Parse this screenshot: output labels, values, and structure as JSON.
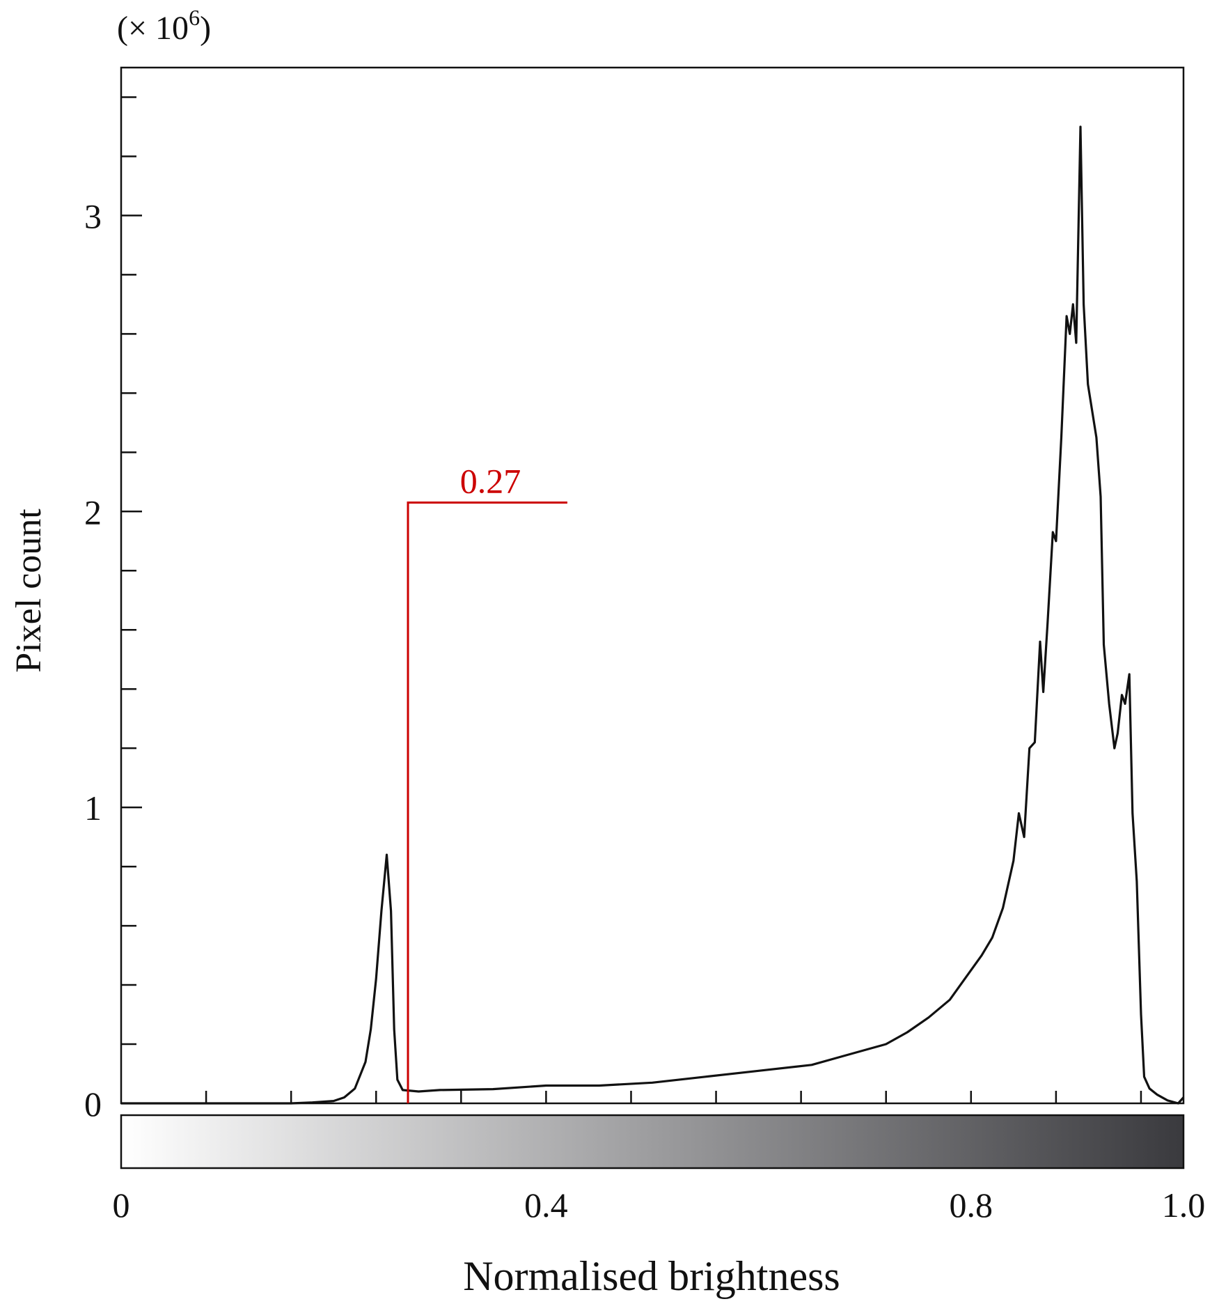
{
  "chart_data": {
    "type": "line",
    "multiplier_label": "(× 10",
    "multiplier_exp": "6",
    "multiplier_close": ")",
    "ylabel": "Pixel count",
    "xlabel": "Normalised brightness",
    "xlim": [
      0,
      1.0
    ],
    "ylim": [
      0,
      3.5
    ],
    "y_ticks": [
      {
        "value": 0,
        "label": "0"
      },
      {
        "value": 1,
        "label": "1"
      },
      {
        "value": 2,
        "label": "2"
      },
      {
        "value": 3,
        "label": "3"
      }
    ],
    "x_ticks": [
      {
        "value": 0,
        "label": "0"
      },
      {
        "value": 0.4,
        "label": "0.4"
      },
      {
        "value": 0.8,
        "label": "0.8"
      },
      {
        "value": 1.0,
        "label": "1.0"
      }
    ],
    "threshold": {
      "x": 0.27,
      "y": 2.03,
      "label": "0.27",
      "color": "#cc0000"
    },
    "colorbar": {
      "from": "#ffffff",
      "to": "#3a3a3e"
    },
    "series": [
      {
        "values": [
          [
            0.0,
            0.0
          ],
          [
            0.16,
            0.0
          ],
          [
            0.18,
            0.003
          ],
          [
            0.2,
            0.008
          ],
          [
            0.21,
            0.02
          ],
          [
            0.22,
            0.05
          ],
          [
            0.23,
            0.14
          ],
          [
            0.235,
            0.25
          ],
          [
            0.24,
            0.42
          ],
          [
            0.245,
            0.65
          ],
          [
            0.25,
            0.84
          ],
          [
            0.254,
            0.65
          ],
          [
            0.257,
            0.25
          ],
          [
            0.26,
            0.08
          ],
          [
            0.265,
            0.045
          ],
          [
            0.28,
            0.04
          ],
          [
            0.3,
            0.045
          ],
          [
            0.35,
            0.048
          ],
          [
            0.4,
            0.06
          ],
          [
            0.45,
            0.06
          ],
          [
            0.5,
            0.07
          ],
          [
            0.55,
            0.09
          ],
          [
            0.6,
            0.11
          ],
          [
            0.65,
            0.13
          ],
          [
            0.68,
            0.16
          ],
          [
            0.7,
            0.18
          ],
          [
            0.72,
            0.2
          ],
          [
            0.74,
            0.24
          ],
          [
            0.76,
            0.29
          ],
          [
            0.78,
            0.35
          ],
          [
            0.8,
            0.45
          ],
          [
            0.81,
            0.5
          ],
          [
            0.82,
            0.56
          ],
          [
            0.83,
            0.66
          ],
          [
            0.84,
            0.82
          ],
          [
            0.845,
            0.98
          ],
          [
            0.85,
            0.9
          ],
          [
            0.855,
            1.2
          ],
          [
            0.86,
            1.22
          ],
          [
            0.865,
            1.56
          ],
          [
            0.868,
            1.39
          ],
          [
            0.872,
            1.62
          ],
          [
            0.877,
            1.93
          ],
          [
            0.88,
            1.9
          ],
          [
            0.885,
            2.25
          ],
          [
            0.89,
            2.66
          ],
          [
            0.893,
            2.6
          ],
          [
            0.896,
            2.7
          ],
          [
            0.899,
            2.57
          ],
          [
            0.903,
            3.3
          ],
          [
            0.906,
            2.7
          ],
          [
            0.91,
            2.43
          ],
          [
            0.918,
            2.25
          ],
          [
            0.922,
            2.05
          ],
          [
            0.925,
            1.55
          ],
          [
            0.93,
            1.35
          ],
          [
            0.935,
            1.2
          ],
          [
            0.938,
            1.25
          ],
          [
            0.942,
            1.38
          ],
          [
            0.945,
            1.35
          ],
          [
            0.949,
            1.45
          ],
          [
            0.952,
            0.98
          ],
          [
            0.956,
            0.75
          ],
          [
            0.96,
            0.3
          ],
          [
            0.963,
            0.09
          ],
          [
            0.968,
            0.05
          ],
          [
            0.975,
            0.03
          ],
          [
            0.985,
            0.01
          ],
          [
            0.995,
            0.0
          ],
          [
            1.0,
            0.02
          ]
        ]
      }
    ]
  }
}
